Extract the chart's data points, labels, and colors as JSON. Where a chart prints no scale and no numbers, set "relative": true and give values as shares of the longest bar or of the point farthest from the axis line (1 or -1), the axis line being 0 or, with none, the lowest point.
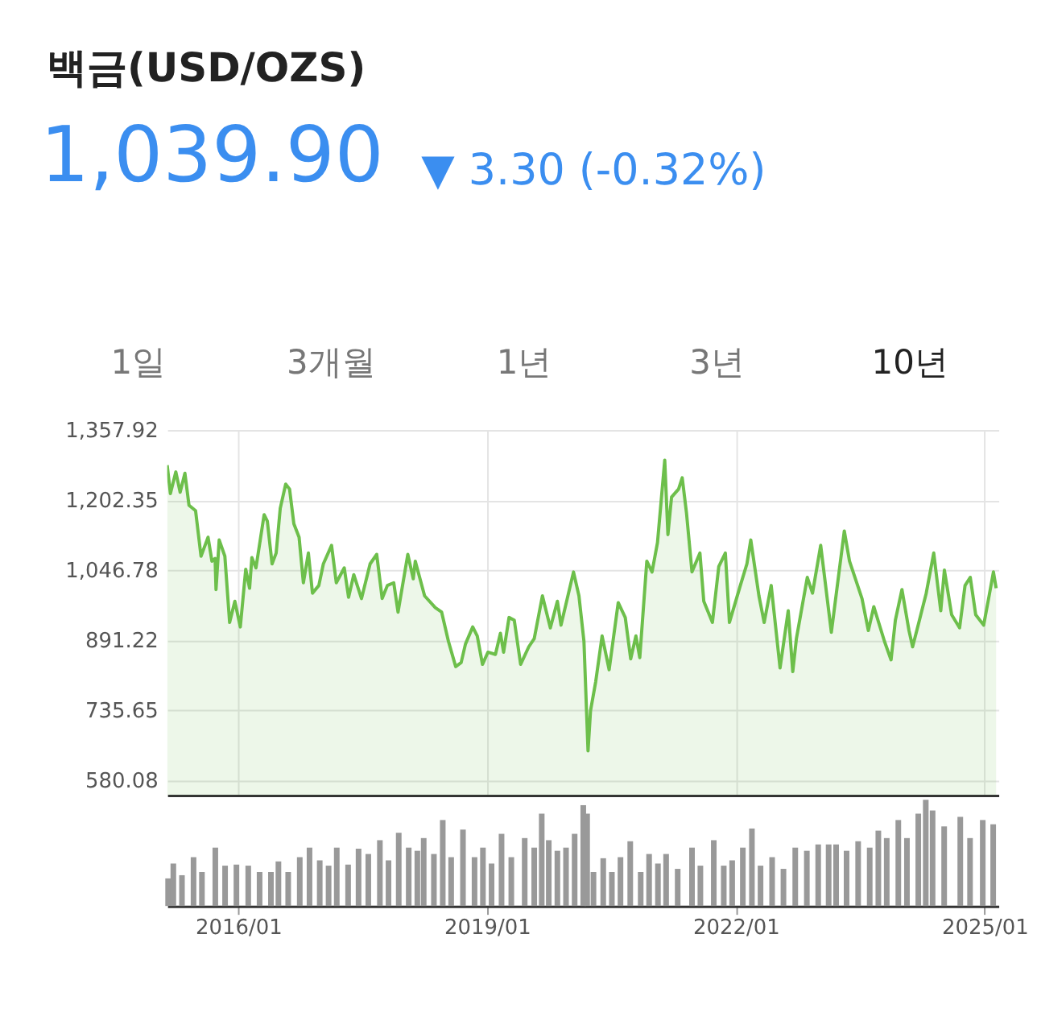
{
  "chart_data": [
    {
      "type": "area",
      "title": "백금(USD/OZS)",
      "subtitle": "1,039.90",
      "annotations": [
        "▼ 3.30 (-0.32%)",
        "1일",
        "3개월",
        "1년",
        "3년",
        "10년"
      ],
      "x": [
        "2015-02-22",
        "2015-03-08",
        "2015-04-01",
        "2015-04-20",
        "2015-05-11",
        "2015-05-29",
        "2015-06-27",
        "2015-07-21",
        "2015-08-21",
        "2015-09-07",
        "2015-09-21",
        "2015-09-25",
        "2015-10-09",
        "2015-11-03",
        "2015-11-24",
        "2015-12-17",
        "2016-01-10",
        "2016-02-03",
        "2016-02-20",
        "2016-03-01",
        "2016-03-19",
        "2016-04-24",
        "2016-05-08",
        "2016-05-29",
        "2016-06-16",
        "2016-07-04",
        "2016-07-28",
        "2016-08-14",
        "2016-09-02",
        "2016-09-25",
        "2016-10-14",
        "2016-11-05",
        "2016-11-23",
        "2016-12-21",
        "2017-01-10",
        "2017-02-15",
        "2017-03-08",
        "2017-04-12",
        "2017-05-01",
        "2017-05-24",
        "2017-06-27",
        "2017-08-04",
        "2017-09-02",
        "2017-09-26",
        "2017-10-19",
        "2017-11-16",
        "2017-12-05",
        "2018-01-17",
        "2018-02-10",
        "2018-02-19",
        "2018-04-01",
        "2018-05-18",
        "2018-06-15",
        "2018-07-15",
        "2018-08-16",
        "2018-09-09",
        "2018-09-28",
        "2018-10-30",
        "2018-11-19",
        "2018-12-12",
        "2019-01-05",
        "2019-02-07",
        "2019-03-01",
        "2019-03-15",
        "2019-04-08",
        "2019-05-01",
        "2019-05-29",
        "2019-07-04",
        "2019-07-28",
        "2019-09-02",
        "2019-10-07",
        "2019-11-07",
        "2019-11-23",
        "2020-01-17",
        "2020-02-10",
        "2020-03-03",
        "2020-03-21",
        "2020-04-01",
        "2020-04-24",
        "2020-05-22",
        "2020-06-22",
        "2020-08-01",
        "2020-09-01",
        "2020-09-25",
        "2020-10-18",
        "2020-11-04",
        "2020-12-05",
        "2020-12-28",
        "2021-01-21",
        "2021-02-22",
        "2021-03-08",
        "2021-03-24",
        "2021-04-24",
        "2021-05-10",
        "2021-05-29",
        "2021-06-22",
        "2021-07-27",
        "2021-08-13",
        "2021-09-20",
        "2021-10-18",
        "2021-11-16",
        "2021-12-04",
        "2022-01-21",
        "2022-02-19",
        "2022-03-08",
        "2022-04-13",
        "2022-05-06",
        "2022-06-06",
        "2022-07-15",
        "2022-08-20",
        "2022-09-09",
        "2022-09-25",
        "2022-11-12",
        "2022-12-05",
        "2023-01-10",
        "2023-02-26",
        "2023-03-14",
        "2023-04-24",
        "2023-05-17",
        "2023-07-11",
        "2023-08-08",
        "2023-09-01",
        "2023-10-18",
        "2023-11-16",
        "2023-12-05",
        "2024-01-03",
        "2024-02-03",
        "2024-02-19",
        "2024-03-20",
        "2024-04-19",
        "2024-05-22",
        "2024-06-22",
        "2024-07-08",
        "2024-08-09",
        "2024-09-13",
        "2024-10-07",
        "2024-10-30",
        "2024-11-23",
        "2024-12-28",
        "2025-01-21",
        "2025-02-09",
        "2025-02-21"
      ],
      "series": [
        {
          "color": "#6dbf4b",
          "values": [
            1280,
            1217,
            1265,
            1220,
            1262,
            1191,
            1179,
            1078,
            1120,
            1067,
            1073,
            1004,
            1114,
            1078,
            931,
            978,
            921,
            1049,
            1007,
            1075,
            1052,
            1170,
            1156,
            1061,
            1085,
            1184,
            1238,
            1227,
            1150,
            1120,
            1019,
            1085,
            996,
            1013,
            1061,
            1102,
            1019,
            1052,
            987,
            1037,
            984,
            1061,
            1082,
            984,
            1013,
            1019,
            954,
            1082,
            1028,
            1067,
            990,
            964,
            954,
            889,
            833,
            842,
            883,
            921,
            901,
            838,
            865,
            860,
            907,
            865,
            942,
            936,
            838,
            877,
            895,
            990,
            919,
            978,
            925,
            1043,
            990,
            889,
            646,
            735,
            800,
            901,
            826,
            975,
            942,
            850,
            901,
            853,
            1067,
            1043,
            1108,
            1291,
            1126,
            1209,
            1227,
            1252,
            1173,
            1043,
            1085,
            978,
            931,
            1055,
            1085,
            931,
            1013,
            1061,
            1114,
            990,
            931,
            1013,
            830,
            957,
            822,
            895,
            1031,
            996,
            1102,
            909,
            972,
            1134,
            1067,
            984,
            913,
            966,
            889,
            848,
            936,
            1004,
            913,
            877,
            936,
            996,
            1085,
            957,
            1047,
            948,
            919,
            1013,
            1031,
            948,
            925,
            990,
            1043,
            1007
          ]
        }
      ],
      "xlim": [
        "2015-02-22",
        "2025-03-03"
      ],
      "xticks": [
        {
          "value": "2016-01-01",
          "label": null
        },
        {
          "value": "2019-01-01",
          "label": null
        },
        {
          "value": "2022-01-01",
          "label": null
        },
        {
          "value": "2025-01-01",
          "label": null
        }
      ],
      "ylim": [
        548,
        1357.92
      ],
      "yticks": [
        {
          "value": 580.08,
          "label": "580.08"
        },
        {
          "value": 735.65,
          "label": "735.65"
        },
        {
          "value": 891.22,
          "label": "891.22"
        },
        {
          "value": 1046.78,
          "label": "1,046.78"
        },
        {
          "value": 1202.35,
          "label": "1,202.35"
        },
        {
          "value": 1357.92,
          "label": "1,357.92"
        }
      ],
      "grid": true,
      "tick_labels": "y"
    },
    {
      "type": "bar",
      "relative": true,
      "tick_labels": "x",
      "x": [
        "2015-02-26",
        "2015-03-21",
        "2015-04-28",
        "2015-06-18",
        "2015-07-25",
        "2015-09-22",
        "2015-11-04",
        "2015-12-24",
        "2016-02-14",
        "2016-04-04",
        "2016-05-24",
        "2016-06-26",
        "2016-08-08",
        "2016-09-28",
        "2016-11-10",
        "2016-12-25",
        "2017-02-02",
        "2017-03-10",
        "2017-04-29",
        "2017-06-14",
        "2017-07-27",
        "2017-09-16",
        "2017-10-24",
        "2017-12-08",
        "2018-01-21",
        "2018-02-28",
        "2018-03-28",
        "2018-05-12",
        "2018-06-20",
        "2018-07-27",
        "2018-09-17",
        "2018-11-07",
        "2018-12-14",
        "2019-01-21",
        "2019-03-06",
        "2019-04-18",
        "2019-06-16",
        "2019-07-28",
        "2019-08-30",
        "2019-09-30",
        "2019-11-07",
        "2019-12-15",
        "2020-01-22",
        "2020-02-29",
        "2020-03-17",
        "2020-04-14",
        "2020-05-27",
        "2020-07-04",
        "2020-08-11",
        "2020-09-23",
        "2020-11-08",
        "2020-12-15",
        "2021-01-23",
        "2021-02-28",
        "2021-04-20",
        "2021-06-22",
        "2021-07-29",
        "2021-09-26",
        "2021-11-09",
        "2021-12-16",
        "2022-02-01",
        "2022-03-13",
        "2022-04-20",
        "2022-06-10",
        "2022-07-30",
        "2022-09-20",
        "2022-11-10",
        "2022-12-30",
        "2023-02-14",
        "2023-03-19",
        "2023-05-04",
        "2023-06-24",
        "2023-08-14",
        "2023-09-21",
        "2023-10-28",
        "2023-12-18",
        "2024-01-25",
        "2024-03-15",
        "2024-04-17",
        "2024-05-17",
        "2024-07-07",
        "2024-09-16",
        "2024-10-29",
        "2024-12-24",
        "2025-02-08"
      ],
      "values": [
        0.26,
        0.4,
        0.29,
        0.46,
        0.32,
        0.55,
        0.38,
        0.39,
        0.38,
        0.32,
        0.32,
        0.42,
        0.32,
        0.46,
        0.55,
        0.43,
        0.38,
        0.55,
        0.39,
        0.54,
        0.49,
        0.62,
        0.43,
        0.69,
        0.55,
        0.52,
        0.64,
        0.49,
        0.81,
        0.46,
        0.72,
        0.46,
        0.55,
        0.4,
        0.68,
        0.46,
        0.64,
        0.55,
        0.87,
        0.62,
        0.52,
        0.55,
        0.68,
        0.95,
        0.87,
        0.32,
        0.45,
        0.32,
        0.46,
        0.61,
        0.32,
        0.49,
        0.4,
        0.49,
        0.35,
        0.55,
        0.38,
        0.62,
        0.38,
        0.43,
        0.55,
        0.73,
        0.38,
        0.46,
        0.35,
        0.55,
        0.52,
        0.58,
        0.58,
        0.58,
        0.52,
        0.61,
        0.55,
        0.71,
        0.64,
        0.81,
        0.64,
        0.87,
        1,
        0.9,
        0.75,
        0.84,
        0.64,
        0.81,
        0.77
      ],
      "color": "#999999",
      "xlim": [
        "2015-02-22",
        "2025-03-03"
      ],
      "xticks": [
        {
          "value": "2016-01-01",
          "label": "2016/01"
        },
        {
          "value": "2019-01-01",
          "label": "2019/01"
        },
        {
          "value": "2022-01-01",
          "label": "2022/01"
        },
        {
          "value": "2025-01-01",
          "label": "2025/01"
        }
      ]
    }
  ]
}
